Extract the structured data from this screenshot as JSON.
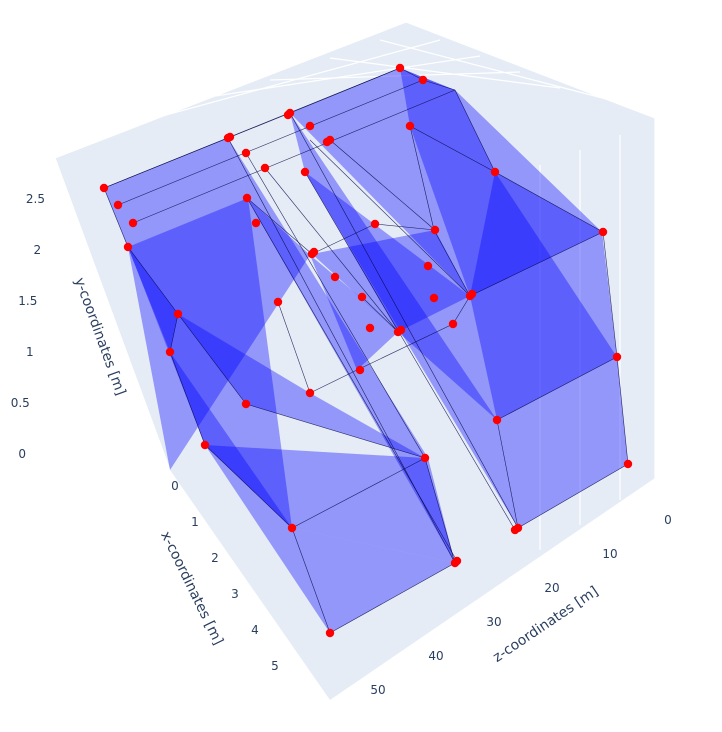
{
  "chart_data": {
    "type": "mesh3d",
    "title": "",
    "colors": {
      "mesh": "#0000ff",
      "vertex": "#ff0000",
      "pane": "#e5ecf6",
      "grid": "#ffffff",
      "text": "#2a3f5f"
    },
    "axes": {
      "x": {
        "label": "x-coordinates [m]",
        "range": [
          0,
          5
        ],
        "ticks": [
          "0",
          "1",
          "2",
          "3",
          "4",
          "5"
        ]
      },
      "y": {
        "label": "y-coordinates [m]",
        "range": [
          0,
          2.5
        ],
        "ticks": [
          "0",
          "0.5",
          "1",
          "1.5",
          "2",
          "2.5"
        ]
      },
      "z": {
        "label": "z-coordinates [m]",
        "range": [
          0,
          50
        ],
        "ticks": [
          "0",
          "10",
          "20",
          "30",
          "40",
          "50"
        ]
      }
    },
    "grid": true,
    "series": [
      {
        "type": "box",
        "description_values": {
          "x": [
            0,
            5
          ],
          "y": [
            0,
            2.5
          ],
          "z": [
            0,
            50
          ]
        }
      }
    ]
  }
}
